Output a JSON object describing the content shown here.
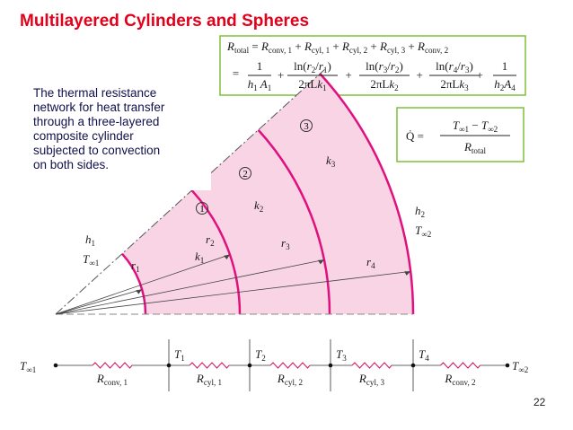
{
  "title": "Multilayered Cylinders and Spheres",
  "caption": [
    "The thermal resistance",
    "network for heat transfer",
    "through a three-layered",
    "composite cylinder",
    "subjected to convection",
    "on both sides."
  ],
  "equation": {
    "row1": [
      {
        "t": "R",
        "s": "total"
      },
      " = ",
      {
        "t": "R",
        "s": "conv, 1"
      },
      " + ",
      {
        "t": "R",
        "s": "cyl, 1"
      },
      " + ",
      {
        "t": "R",
        "s": "cyl, 2"
      },
      " + ",
      {
        "t": "R",
        "s": "cyl, 3"
      },
      " + ",
      {
        "t": "R",
        "s": "conv, 2"
      }
    ],
    "equals": "=",
    "plus": "+",
    "fractions": [
      {
        "num": [
          "1"
        ],
        "den": [
          {
            "t": "h",
            "s": "1"
          },
          {
            "t": " A",
            "s": "1"
          }
        ]
      },
      {
        "num": [
          "ln(",
          {
            "t": "r",
            "s": "2"
          },
          "/",
          {
            "t": "r",
            "s": "1"
          },
          ")"
        ],
        "den": [
          "2πL",
          {
            "t": "k",
            "s": "1"
          }
        ]
      },
      {
        "num": [
          "ln(",
          {
            "t": "r",
            "s": "3"
          },
          "/",
          {
            "t": "r",
            "s": "2"
          },
          ")"
        ],
        "den": [
          "2πL",
          {
            "t": "k",
            "s": "2"
          }
        ]
      },
      {
        "num": [
          "ln(",
          {
            "t": "r",
            "s": "4"
          },
          "/",
          {
            "t": "r",
            "s": "3"
          },
          ")"
        ],
        "den": [
          "2πL",
          {
            "t": "k",
            "s": "3"
          }
        ]
      },
      {
        "num": [
          "1"
        ],
        "den": [
          {
            "t": "h",
            "s": "2"
          },
          {
            "t": "A",
            "s": "4"
          }
        ]
      }
    ]
  },
  "heat_rate": {
    "lhs": [
      "Q̇ ="
    ],
    "num": [
      {
        "t": "T",
        "s": "∞1"
      },
      " − ",
      {
        "t": "T",
        "s": "∞2"
      }
    ],
    "den": [
      {
        "t": "R",
        "s": "total"
      }
    ]
  },
  "diagram": {
    "layer_numbers": [
      "1",
      "2",
      "3"
    ],
    "conductivities": [
      [
        {
          "t": "k",
          "s": "1"
        }
      ],
      [
        {
          "t": "k",
          "s": "2"
        }
      ],
      [
        {
          "t": "k",
          "s": "3"
        }
      ]
    ],
    "radii": [
      [
        {
          "t": "r",
          "s": "1"
        }
      ],
      [
        {
          "t": "r",
          "s": "2"
        }
      ],
      [
        {
          "t": "r",
          "s": "3"
        }
      ],
      [
        {
          "t": "r",
          "s": "4"
        }
      ]
    ],
    "inner": [
      [
        {
          "t": "h",
          "s": "1"
        }
      ],
      [
        {
          "t": "T",
          "s": "∞1"
        }
      ]
    ],
    "outer": [
      [
        {
          "t": "h",
          "s": "2"
        }
      ],
      [
        {
          "t": "T",
          "s": "∞2"
        }
      ]
    ]
  },
  "network": {
    "temperatures": [
      [
        {
          "t": "T",
          "s": "∞1"
        }
      ],
      [
        {
          "t": "T",
          "s": "1"
        }
      ],
      [
        {
          "t": "T",
          "s": "2"
        }
      ],
      [
        {
          "t": "T",
          "s": "3"
        }
      ],
      [
        {
          "t": "T",
          "s": "4"
        }
      ],
      [
        {
          "t": "T",
          "s": "∞2"
        }
      ]
    ],
    "resistances": [
      [
        {
          "t": "R",
          "s": "conv, 1"
        }
      ],
      [
        {
          "t": "R",
          "s": "cyl, 1"
        }
      ],
      [
        {
          "t": "R",
          "s": "cyl, 2"
        }
      ],
      [
        {
          "t": "R",
          "s": "cyl, 3"
        }
      ],
      [
        {
          "t": "R",
          "s": "conv, 2"
        }
      ]
    ]
  },
  "page_number": "22"
}
